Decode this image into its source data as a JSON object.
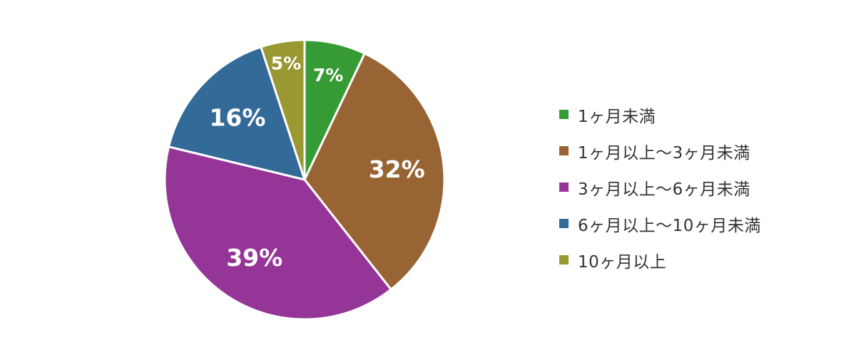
{
  "chart_data": {
    "type": "pie",
    "categories": [
      "1ヶ月未満",
      "1ヶ月以上〜3ヶ月未満",
      "3ヶ月以上〜6ヶ月未満",
      "6ヶ月以上〜10ヶ月未満",
      "10ヶ月以上"
    ],
    "values": [
      7,
      32,
      39,
      16,
      5
    ],
    "value_labels": [
      "7%",
      "32%",
      "39%",
      "16%",
      "5%"
    ],
    "colors": [
      "#369b34",
      "#986433",
      "#953598",
      "#346a98",
      "#999832"
    ],
    "start_angle_deg": 0,
    "direction": "clockwise",
    "legend_position": "right"
  }
}
